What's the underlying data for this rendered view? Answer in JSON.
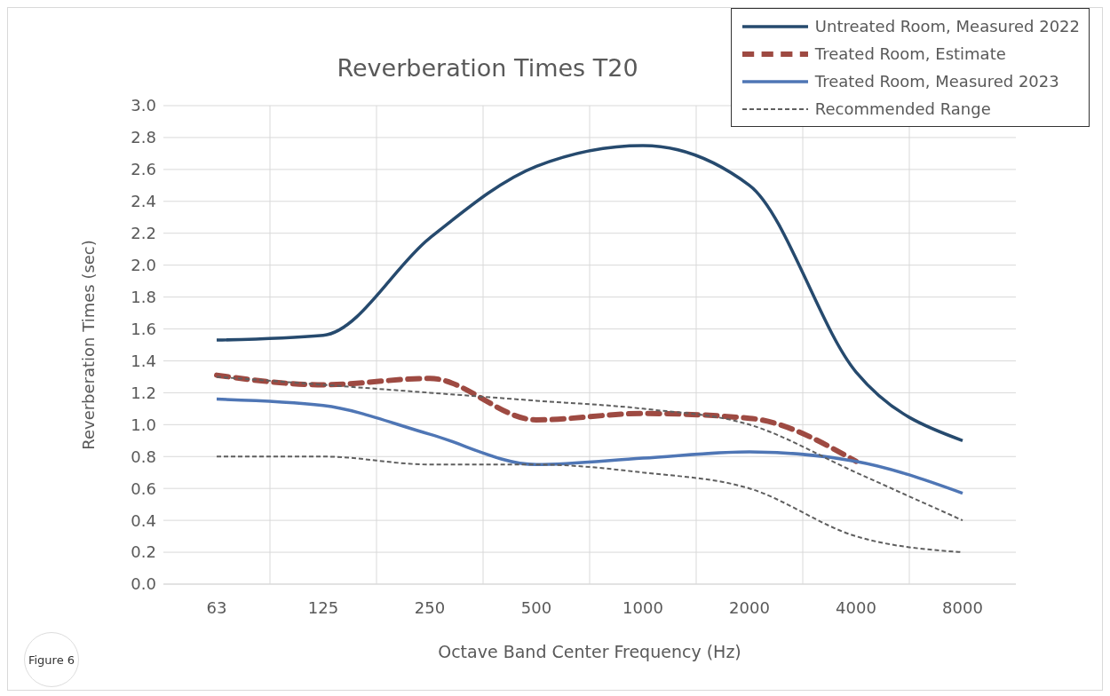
{
  "chart_data": {
    "type": "line",
    "title": "Reverberation Times T20",
    "xlabel": "Octave Band Center Frequency (Hz)",
    "ylabel": "Reverberation Times (sec)",
    "categories": [
      "63",
      "125",
      "250",
      "500",
      "1000",
      "2000",
      "4000",
      "8000"
    ],
    "series": [
      {
        "name": "Untreated Room, Measured 2022",
        "color": "#264a6e",
        "line_style": "solid",
        "values": [
          1.53,
          1.56,
          2.17,
          2.62,
          2.75,
          2.5,
          1.33,
          0.9
        ]
      },
      {
        "name": "Treated Room, Estimate",
        "color": "#9e4a42",
        "line_style": "dashed",
        "values": [
          1.31,
          1.25,
          1.29,
          1.03,
          1.07,
          1.04,
          0.77,
          null
        ]
      },
      {
        "name": "Treated Room, Measured 2023",
        "color": "#4f76b5",
        "line_style": "solid",
        "values": [
          1.16,
          1.12,
          0.94,
          0.75,
          0.79,
          0.83,
          0.77,
          0.57
        ]
      },
      {
        "name": "Recommended Range",
        "color": "#5f5f5f",
        "line_style": "dotted",
        "values": [
          1.3,
          1.25,
          1.2,
          1.15,
          1.1,
          1.0,
          0.7,
          0.4
        ]
      },
      {
        "color": "#5f5f5f",
        "line_style": "dotted",
        "values": [
          0.8,
          0.8,
          0.75,
          0.75,
          0.7,
          0.6,
          0.3,
          0.2
        ]
      }
    ],
    "ylim": [
      0,
      3
    ],
    "yticks": [
      {
        "value": 0,
        "label": "0.0"
      },
      0.2,
      0.4,
      0.6,
      0.8,
      {
        "value": 1,
        "label": "1.0"
      },
      1.2,
      1.4,
      1.6,
      1.8,
      {
        "value": 2,
        "label": "2.0"
      },
      2.2,
      2.4,
      2.6,
      2.8,
      {
        "value": 3,
        "label": "3.0"
      }
    ],
    "grid": true,
    "legend": "top right",
    "marker": "none",
    "annotations": [
      "Figure 6"
    ]
  }
}
